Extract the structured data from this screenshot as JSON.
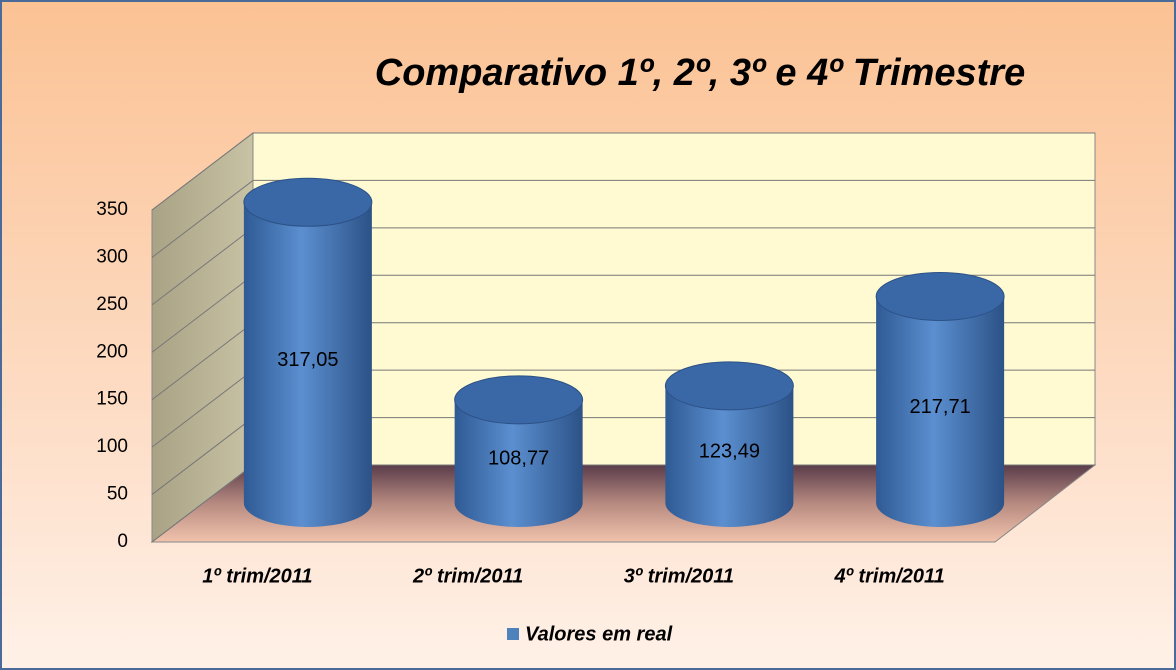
{
  "chart_data": {
    "type": "bar",
    "title": "Comparativo 1º, 2º, 3º e 4º Trimestre",
    "categories": [
      "1º trim/2011",
      "2º trim/2011",
      "3º trim/2011",
      "4º trim/2011"
    ],
    "series": [
      {
        "name": "Valores em real",
        "color": "#4f81bd",
        "values": [
          317.05,
          108.77,
          123.49,
          217.71
        ],
        "value_labels": [
          "317,05",
          "108,77",
          "123,49",
          "217,71"
        ]
      }
    ],
    "ylim": [
      0,
      350
    ],
    "yticks": [
      0,
      50,
      100,
      150,
      200,
      250,
      300,
      350
    ],
    "grid": true,
    "legend": "bottom"
  }
}
